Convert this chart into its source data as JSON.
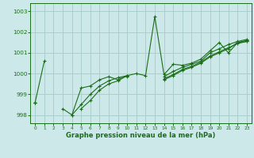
{
  "xlabel": "Graphe pression niveau de la mer (hPa)",
  "bg_color": "#cce8e8",
  "grid_color": "#aacece",
  "line_color": "#1a6e1a",
  "xlim": [
    -0.5,
    23.5
  ],
  "ylim": [
    997.6,
    1003.4
  ],
  "yticks": [
    998,
    999,
    1000,
    1001,
    1002,
    1003
  ],
  "xticks": [
    0,
    1,
    2,
    3,
    4,
    5,
    6,
    7,
    8,
    9,
    10,
    11,
    12,
    13,
    14,
    15,
    16,
    17,
    18,
    19,
    20,
    21,
    22,
    23
  ],
  "series": [
    [
      998.6,
      1000.6,
      null,
      998.3,
      998.0,
      999.3,
      999.4,
      999.7,
      999.85,
      999.7,
      999.9,
      1000.0,
      999.9,
      1002.75,
      999.95,
      1000.45,
      1000.4,
      1000.5,
      1000.7,
      1001.1,
      1001.5,
      1001.0,
      1001.5,
      1001.6
    ],
    [
      998.6,
      null,
      null,
      null,
      998.0,
      998.5,
      999.0,
      999.4,
      999.65,
      999.8,
      999.9,
      null,
      null,
      null,
      999.85,
      1000.1,
      1000.3,
      1000.45,
      1000.6,
      1001.0,
      1001.2,
      1001.4,
      1001.55,
      1001.65
    ],
    [
      998.6,
      null,
      null,
      null,
      null,
      998.3,
      998.7,
      999.2,
      999.5,
      999.65,
      999.9,
      null,
      null,
      null,
      999.75,
      999.95,
      1000.2,
      1000.35,
      1000.55,
      1000.85,
      1001.05,
      1001.25,
      1001.45,
      1001.55
    ],
    [
      998.6,
      null,
      null,
      null,
      null,
      null,
      null,
      null,
      null,
      null,
      999.85,
      null,
      null,
      null,
      999.7,
      999.9,
      1000.15,
      1000.3,
      1000.5,
      1000.8,
      1001.0,
      1001.2,
      1001.5,
      1001.55
    ]
  ]
}
